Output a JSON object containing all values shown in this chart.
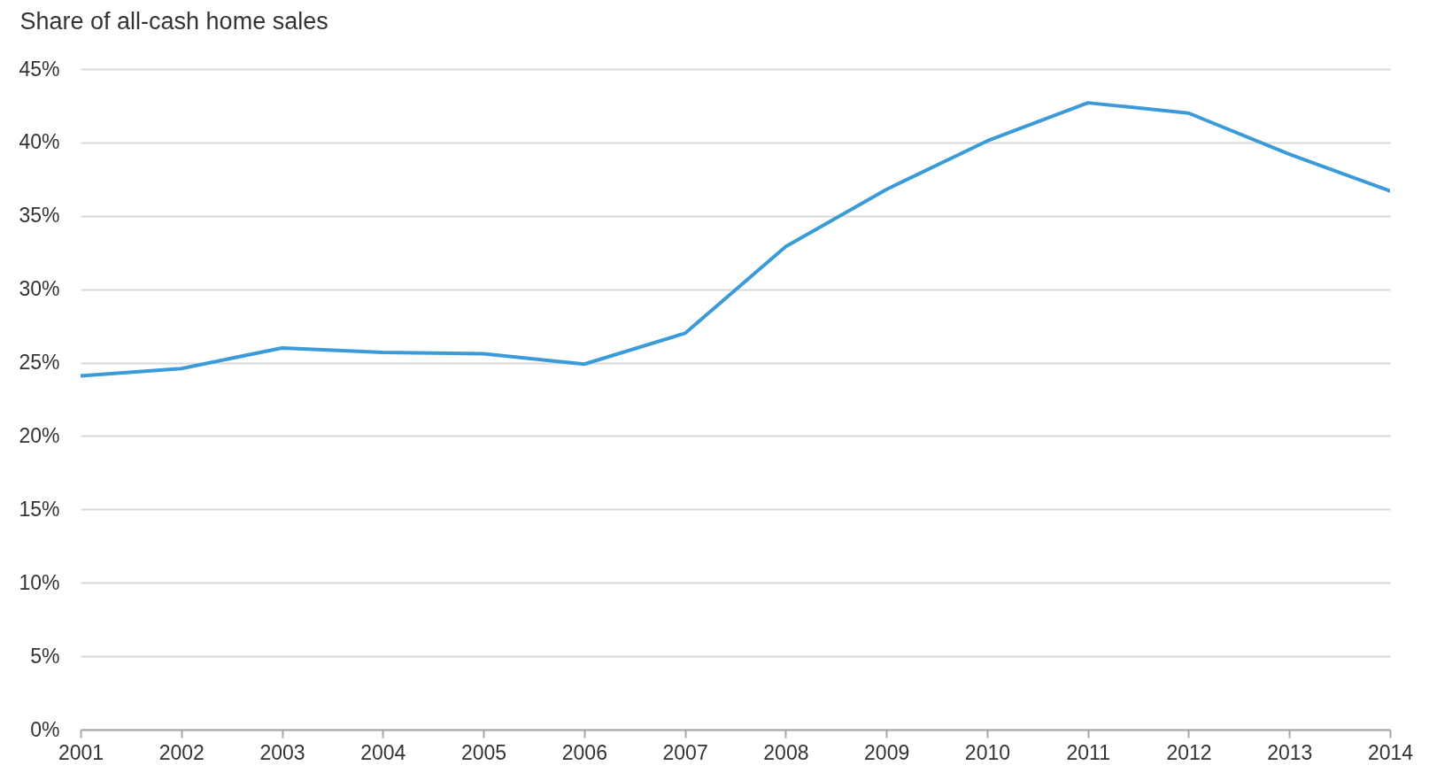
{
  "chart_data": {
    "type": "line",
    "ylabel": "Share of all-cash home sales",
    "x": [
      2001,
      2002,
      2003,
      2004,
      2005,
      2006,
      2007,
      2008,
      2009,
      2010,
      2011,
      2012,
      2013,
      2014
    ],
    "series": [
      {
        "color": "#3b9ad8",
        "values": [
          24.1,
          24.6,
          26.0,
          25.7,
          25.6,
          24.9,
          27.0,
          32.9,
          36.8,
          40.1,
          42.7,
          42.0,
          39.2,
          36.7
        ]
      }
    ],
    "xlim": [
      2001,
      2014
    ],
    "xticks": [
      2001,
      2002,
      2003,
      2004,
      2005,
      2006,
      2007,
      2008,
      2009,
      2010,
      2011,
      2012,
      2013,
      2014
    ],
    "ylim": [
      0,
      45
    ],
    "yticks": [
      {
        "value": 0,
        "label": "0%"
      },
      {
        "value": 5,
        "label": "5%"
      },
      {
        "value": 10,
        "label": "10%"
      },
      {
        "value": 15,
        "label": "15%"
      },
      {
        "value": 20,
        "label": "20%"
      },
      {
        "value": 25,
        "label": "25%"
      },
      {
        "value": 30,
        "label": "30%"
      },
      {
        "value": 35,
        "label": "35%"
      },
      {
        "value": 40,
        "label": "40%"
      },
      {
        "value": 45,
        "label": "45%"
      }
    ],
    "grid": "y",
    "legend": false,
    "marker": "none",
    "line_style": "solid"
  }
}
